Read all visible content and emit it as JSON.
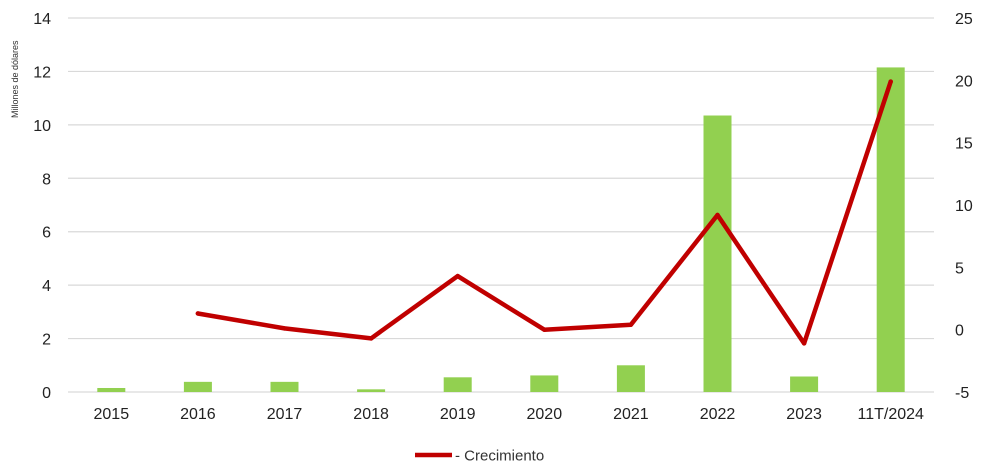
{
  "chart_data": {
    "type": "bar+line",
    "categories": [
      "2015",
      "2016",
      "2017",
      "2018",
      "2019",
      "2020",
      "2021",
      "2022",
      "2023",
      "11T/2024"
    ],
    "series": [
      {
        "type": "bar",
        "axis": "left",
        "color": "#92d050",
        "values": [
          0.15,
          0.38,
          0.38,
          0.1,
          0.55,
          0.62,
          1.0,
          10.35,
          0.58,
          12.15
        ]
      },
      {
        "name": "- Crecimiento",
        "type": "line",
        "axis": "right",
        "color": "#c00000",
        "values": [
          null,
          1.3,
          0.1,
          -0.7,
          4.3,
          0.0,
          0.4,
          9.2,
          -1.1,
          19.9
        ]
      }
    ],
    "ylabel": "Millones de dólares",
    "y_left": {
      "min": 0,
      "max": 14,
      "ticks": [
        "0",
        "2",
        "4",
        "6",
        "8",
        "10",
        "12",
        "14"
      ]
    },
    "y_right": {
      "min": -5,
      "max": 25,
      "ticks": [
        "-5",
        "0",
        "5",
        "10",
        "15",
        "20",
        "25"
      ]
    },
    "grid": true,
    "legend": "bottom-center"
  }
}
